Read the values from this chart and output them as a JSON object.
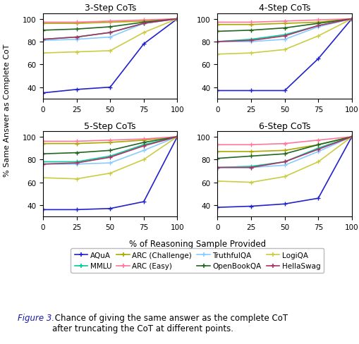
{
  "subplots": [
    "3-Step CoTs",
    "4-Step CoTs",
    "5-Step CoTs",
    "6-Step CoTs"
  ],
  "x": [
    0,
    25,
    50,
    75,
    100
  ],
  "series": {
    "AQuA": {
      "color": "#2222cc",
      "data": {
        "3": [
          35,
          38,
          40,
          78,
          100
        ],
        "4": [
          37,
          37,
          37,
          65,
          100
        ],
        "5": [
          36,
          36,
          37,
          43,
          100
        ],
        "6": [
          38,
          39,
          41,
          46,
          100
        ]
      }
    },
    "TruthfulQA": {
      "color": "#88ccff",
      "data": {
        "3": [
          81,
          82,
          84,
          96,
          100
        ],
        "4": [
          80,
          80,
          82,
          93,
          100
        ],
        "5": [
          76,
          76,
          77,
          88,
          100
        ],
        "6": [
          73,
          73,
          75,
          87,
          100
        ]
      }
    },
    "MMLU": {
      "color": "#00cc99",
      "data": {
        "3": [
          82,
          84,
          88,
          96,
          100
        ],
        "4": [
          80,
          82,
          86,
          94,
          100
        ],
        "5": [
          78,
          78,
          83,
          93,
          100
        ],
        "6": [
          73,
          74,
          78,
          90,
          100
        ]
      }
    },
    "OpenBookQA": {
      "color": "#226622",
      "data": {
        "3": [
          90,
          91,
          93,
          97,
          100
        ],
        "4": [
          89,
          90,
          92,
          96,
          100
        ],
        "5": [
          85,
          86,
          88,
          95,
          100
        ],
        "6": [
          81,
          83,
          85,
          93,
          100
        ]
      }
    },
    "ARC (Challenge)": {
      "color": "#aaaa00",
      "data": {
        "3": [
          96,
          96,
          97,
          98,
          100
        ],
        "4": [
          95,
          95,
          96,
          97,
          100
        ],
        "5": [
          94,
          94,
          95,
          97,
          100
        ],
        "6": [
          87,
          87,
          88,
          93,
          100
        ]
      }
    },
    "LogiQA": {
      "color": "#cccc44",
      "data": {
        "3": [
          70,
          71,
          72,
          88,
          100
        ],
        "4": [
          69,
          70,
          73,
          85,
          100
        ],
        "5": [
          64,
          63,
          68,
          80,
          100
        ],
        "6": [
          61,
          60,
          65,
          78,
          100
        ]
      }
    },
    "ARC (Easy)": {
      "color": "#ff7799",
      "data": {
        "3": [
          97,
          97,
          98,
          99,
          100
        ],
        "4": [
          97,
          97,
          98,
          99,
          100
        ],
        "5": [
          96,
          96,
          97,
          98,
          100
        ],
        "6": [
          93,
          93,
          94,
          97,
          100
        ]
      }
    },
    "HellaSwag": {
      "color": "#aa3366",
      "data": {
        "3": [
          82,
          84,
          88,
          96,
          100
        ],
        "4": [
          80,
          81,
          85,
          94,
          100
        ],
        "5": [
          76,
          77,
          82,
          92,
          100
        ],
        "6": [
          73,
          73,
          78,
          89,
          100
        ]
      }
    }
  },
  "xlabel": "% of Reasoning Sample Provided",
  "ylabel": "% Same Answer as Complete CoT",
  "xlim": [
    0,
    100
  ],
  "ylim": [
    30,
    105
  ],
  "xticks": [
    0,
    25,
    50,
    75,
    100
  ],
  "yticks": [
    40,
    60,
    80,
    100
  ],
  "legend_order": [
    "AQuA",
    "MMLU",
    "ARC (Challenge)",
    "ARC (Easy)",
    "TruthfulQA",
    "OpenBookQA",
    "LogiQA",
    "HellaSwag"
  ],
  "caption_italic": "Figure 3.",
  "caption_normal": " Chance of giving the same answer as the complete CoT\nafter truncating the CoT at different points.",
  "fig_width": 5.09,
  "fig_height": 4.89
}
